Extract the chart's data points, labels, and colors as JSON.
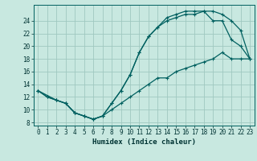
{
  "xlabel": "Humidex (Indice chaleur)",
  "bg_color": "#c8e8e0",
  "grid_color": "#a0c8c0",
  "line_color": "#006060",
  "xlim": [
    -0.5,
    23.5
  ],
  "ylim": [
    7.5,
    26.5
  ],
  "xticks": [
    0,
    1,
    2,
    3,
    4,
    5,
    6,
    7,
    8,
    9,
    10,
    11,
    12,
    13,
    14,
    15,
    16,
    17,
    18,
    19,
    20,
    21,
    22,
    23
  ],
  "yticks": [
    8,
    10,
    12,
    14,
    16,
    18,
    20,
    22,
    24
  ],
  "line1_x": [
    0,
    1,
    2,
    3,
    4,
    5,
    6,
    7,
    8,
    9,
    10,
    11,
    12,
    13,
    14,
    15,
    16,
    17,
    18,
    19,
    20,
    21,
    22,
    23
  ],
  "line1_y": [
    13,
    12,
    11.5,
    11,
    9.5,
    9,
    8.5,
    9,
    10,
    11,
    12,
    13,
    14,
    15,
    15,
    16,
    16.5,
    17,
    17.5,
    18,
    19,
    18,
    18,
    18
  ],
  "line2_x": [
    0,
    1,
    2,
    3,
    4,
    5,
    6,
    7,
    8,
    9,
    10,
    11,
    12,
    13,
    14,
    15,
    16,
    17,
    18,
    19,
    20,
    21,
    22,
    23
  ],
  "line2_y": [
    13,
    12,
    11.5,
    11,
    9.5,
    9,
    8.5,
    9,
    11,
    13,
    15.5,
    19,
    21.5,
    23,
    24,
    24.5,
    25,
    25,
    25.5,
    24,
    24,
    21,
    20,
    18
  ],
  "line3_x": [
    0,
    2,
    3,
    4,
    5,
    6,
    7,
    8,
    9,
    10,
    11,
    12,
    13,
    14,
    15,
    16,
    17,
    18,
    19,
    20,
    21,
    22,
    23
  ],
  "line3_y": [
    13,
    11.5,
    11,
    9.5,
    9,
    8.5,
    9,
    11,
    13,
    15.5,
    19,
    21.5,
    23,
    24.5,
    25,
    25.5,
    25.5,
    25.5,
    25.5,
    25,
    24,
    22.5,
    18
  ]
}
